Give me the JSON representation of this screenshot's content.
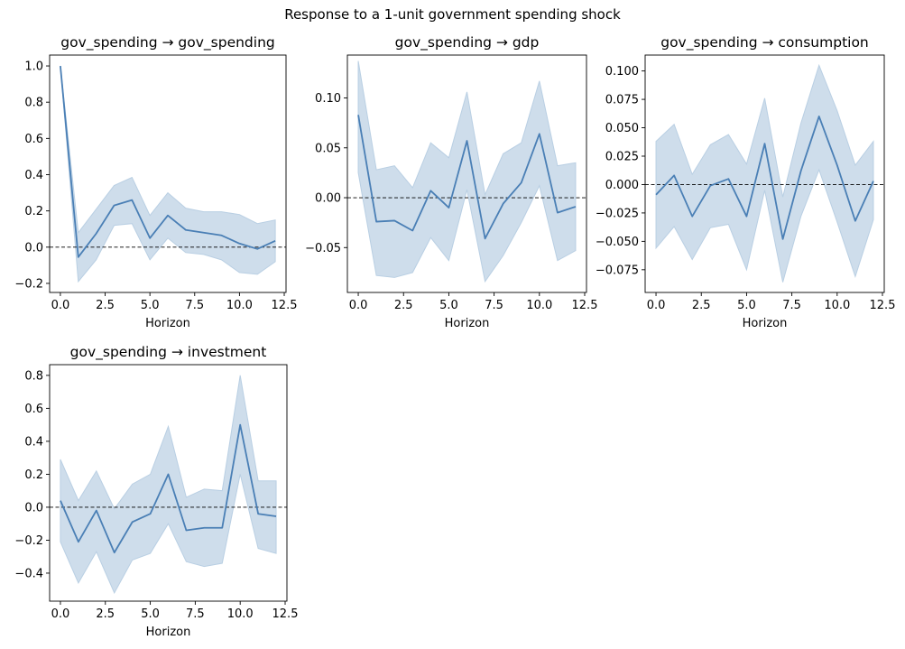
{
  "figure": {
    "suptitle": "Response to a 1-unit government spending shock",
    "line_color": "#4a7fb5",
    "band_color": "#b9cfe3",
    "zero_line_color": "#000000"
  },
  "chart_data": [
    {
      "type": "line",
      "title": "gov_spending → gov_spending",
      "xlabel": "Horizon",
      "ylabel": "",
      "xlim": [
        -0.6,
        12.6
      ],
      "ylim": [
        -0.25,
        1.06
      ],
      "xticks": [
        0,
        2.5,
        5,
        7.5,
        10,
        12.5
      ],
      "xtick_labels": [
        "0.0",
        "2.5",
        "5.0",
        "7.5",
        "10.0",
        "12.5"
      ],
      "yticks": [
        -0.2,
        0,
        0.2,
        0.4,
        0.6,
        0.8,
        1.0
      ],
      "ytick_labels": [
        "−0.2",
        "0.0",
        "0.2",
        "0.4",
        "0.6",
        "0.8",
        "1.0"
      ],
      "x": [
        0,
        1,
        2,
        3,
        4,
        5,
        6,
        7,
        8,
        9,
        10,
        11,
        12
      ],
      "values": [
        1.0,
        -0.055,
        0.075,
        0.23,
        0.26,
        0.05,
        0.175,
        0.095,
        0.08,
        0.065,
        0.02,
        -0.01,
        0.035
      ],
      "lower": [
        1.0,
        -0.19,
        -0.07,
        0.12,
        0.13,
        -0.07,
        0.05,
        -0.03,
        -0.04,
        -0.07,
        -0.14,
        -0.15,
        -0.08
      ],
      "upper": [
        1.0,
        0.08,
        0.21,
        0.34,
        0.385,
        0.175,
        0.3,
        0.215,
        0.195,
        0.195,
        0.18,
        0.13,
        0.15
      ],
      "zero_line": true,
      "grid": false
    },
    {
      "type": "line",
      "title": "gov_spending → gdp",
      "xlabel": "Horizon",
      "ylabel": "",
      "xlim": [
        -0.6,
        12.6
      ],
      "ylim": [
        -0.095,
        0.143
      ],
      "xticks": [
        0,
        2.5,
        5,
        7.5,
        10,
        12.5
      ],
      "xtick_labels": [
        "0.0",
        "2.5",
        "5.0",
        "7.5",
        "10.0",
        "12.5"
      ],
      "yticks": [
        -0.05,
        0,
        0.05,
        0.1
      ],
      "ytick_labels": [
        "−0.05",
        "0.00",
        "0.05",
        "0.10"
      ],
      "x": [
        0,
        1,
        2,
        3,
        4,
        5,
        6,
        7,
        8,
        9,
        10,
        11,
        12
      ],
      "values": [
        0.083,
        -0.024,
        -0.023,
        -0.033,
        0.007,
        -0.01,
        0.057,
        -0.041,
        -0.006,
        0.015,
        0.064,
        -0.015,
        -0.009
      ],
      "lower": [
        0.025,
        -0.078,
        -0.08,
        -0.075,
        -0.04,
        -0.063,
        0.008,
        -0.084,
        -0.058,
        -0.025,
        0.012,
        -0.063,
        -0.053
      ],
      "upper": [
        0.137,
        0.028,
        0.032,
        0.01,
        0.055,
        0.04,
        0.106,
        0.003,
        0.044,
        0.055,
        0.117,
        0.032,
        0.035
      ],
      "zero_line": true,
      "grid": false
    },
    {
      "type": "line",
      "title": "gov_spending → consumption",
      "xlabel": "Horizon",
      "ylabel": "",
      "xlim": [
        -0.6,
        12.6
      ],
      "ylim": [
        -0.095,
        0.114
      ],
      "xticks": [
        0,
        2.5,
        5,
        7.5,
        10,
        12.5
      ],
      "xtick_labels": [
        "0.0",
        "2.5",
        "5.0",
        "7.5",
        "10.0",
        "12.5"
      ],
      "yticks": [
        -0.075,
        -0.05,
        -0.025,
        0,
        0.025,
        0.05,
        0.075,
        0.1
      ],
      "ytick_labels": [
        "−0.075",
        "−0.050",
        "−0.025",
        "0.000",
        "0.025",
        "0.050",
        "0.075",
        "0.100"
      ],
      "x": [
        0,
        1,
        2,
        3,
        4,
        5,
        6,
        7,
        8,
        9,
        10,
        11,
        12
      ],
      "values": [
        -0.009,
        0.008,
        -0.028,
        -0.001,
        0.005,
        -0.028,
        0.036,
        -0.048,
        0.012,
        0.06,
        0.017,
        -0.032,
        0.003
      ],
      "lower": [
        -0.056,
        -0.037,
        -0.066,
        -0.038,
        -0.035,
        -0.075,
        -0.005,
        -0.086,
        -0.028,
        0.013,
        -0.033,
        -0.081,
        -0.031
      ],
      "upper": [
        0.038,
        0.053,
        0.009,
        0.035,
        0.044,
        0.018,
        0.076,
        -0.011,
        0.054,
        0.105,
        0.065,
        0.017,
        0.038
      ],
      "zero_line": true,
      "grid": false
    },
    {
      "type": "line",
      "title": "gov_spending → investment",
      "xlabel": "Horizon",
      "ylabel": "",
      "xlim": [
        -0.6,
        12.6
      ],
      "ylim": [
        -0.57,
        0.865
      ],
      "xticks": [
        0,
        2.5,
        5,
        7.5,
        10,
        12.5
      ],
      "xtick_labels": [
        "0.0",
        "2.5",
        "5.0",
        "7.5",
        "10.0",
        "12.5"
      ],
      "yticks": [
        -0.4,
        -0.2,
        0,
        0.2,
        0.4,
        0.6,
        0.8
      ],
      "ytick_labels": [
        "−0.4",
        "−0.2",
        "0.0",
        "0.2",
        "0.4",
        "0.6",
        "0.8"
      ],
      "x": [
        0,
        1,
        2,
        3,
        4,
        5,
        6,
        7,
        8,
        9,
        10,
        11,
        12
      ],
      "values": [
        0.04,
        -0.21,
        -0.02,
        -0.275,
        -0.09,
        -0.04,
        0.2,
        -0.14,
        -0.125,
        -0.125,
        0.5,
        -0.04,
        -0.055
      ],
      "lower": [
        -0.21,
        -0.46,
        -0.27,
        -0.52,
        -0.32,
        -0.28,
        -0.1,
        -0.33,
        -0.36,
        -0.34,
        0.2,
        -0.25,
        -0.28
      ],
      "upper": [
        0.29,
        0.04,
        0.22,
        -0.01,
        0.14,
        0.2,
        0.49,
        0.06,
        0.11,
        0.1,
        0.8,
        0.16,
        0.16
      ],
      "zero_line": true,
      "grid": false
    }
  ]
}
